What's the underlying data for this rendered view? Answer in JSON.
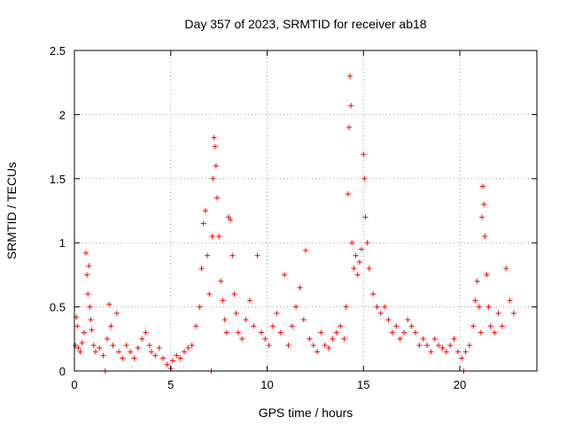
{
  "chart_data": {
    "type": "scatter",
    "title": "Day 357 of 2023, SRMTID for receiver ab18",
    "xlabel": "GPS time / hours",
    "ylabel": "SRMTID / TECUs",
    "xlim": [
      0,
      24
    ],
    "ylim": [
      0,
      2.5
    ],
    "xticks": [
      0,
      5,
      10,
      15,
      20
    ],
    "yticks": [
      0,
      0.5,
      1,
      1.5,
      2,
      2.5
    ],
    "xtick_labels": [
      "0",
      "5",
      "10",
      "15",
      "20"
    ],
    "ytick_labels": [
      "0",
      "0.5",
      "1",
      "1.5",
      "2",
      "2.5"
    ],
    "grid": true,
    "marker": "plus",
    "series": [
      {
        "name": "ab18",
        "color": "#ff0000",
        "points": [
          [
            0.05,
            0.2
          ],
          [
            0.1,
            0.42
          ],
          [
            0.15,
            0.35
          ],
          [
            0.2,
            0.18
          ],
          [
            0.3,
            0.15
          ],
          [
            0.4,
            0.22
          ],
          [
            0.5,
            0.3
          ],
          [
            0.6,
            0.92
          ],
          [
            0.65,
            0.75
          ],
          [
            0.7,
            0.6
          ],
          [
            0.75,
            0.82
          ],
          [
            0.8,
            0.5
          ],
          [
            0.85,
            0.4
          ],
          [
            0.9,
            0.32
          ],
          [
            1.0,
            0.2
          ],
          [
            1.1,
            0.15
          ],
          [
            1.3,
            0.18
          ],
          [
            1.5,
            0.12
          ],
          [
            1.6,
            0.0
          ],
          [
            1.7,
            0.25
          ],
          [
            1.8,
            0.52
          ],
          [
            1.9,
            0.35
          ],
          [
            2.0,
            0.2
          ],
          [
            2.2,
            0.45
          ],
          [
            2.3,
            0.15
          ],
          [
            2.5,
            0.1
          ],
          [
            2.7,
            0.2
          ],
          [
            2.9,
            0.15
          ],
          [
            3.1,
            0.1
          ],
          [
            3.3,
            0.18
          ],
          [
            3.5,
            0.25
          ],
          [
            3.7,
            0.3
          ],
          [
            3.9,
            0.2
          ],
          [
            4.0,
            0.15
          ],
          [
            4.2,
            0.12
          ],
          [
            4.4,
            0.18
          ],
          [
            4.6,
            0.1
          ],
          [
            4.8,
            0.05
          ],
          [
            5.0,
            0.02
          ],
          [
            5.1,
            0.08
          ],
          [
            5.3,
            0.12
          ],
          [
            5.5,
            0.1
          ],
          [
            5.7,
            0.15
          ],
          [
            5.9,
            0.18
          ],
          [
            6.1,
            0.2
          ],
          [
            6.3,
            0.35
          ],
          [
            6.5,
            0.5
          ],
          [
            6.6,
            0.8
          ],
          [
            6.7,
            1.15
          ],
          [
            6.8,
            1.25
          ],
          [
            6.9,
            0.9
          ],
          [
            7.0,
            0.6
          ],
          [
            7.1,
            0.0
          ],
          [
            7.15,
            1.05
          ],
          [
            7.2,
            1.5
          ],
          [
            7.25,
            1.82
          ],
          [
            7.3,
            1.75
          ],
          [
            7.35,
            1.6
          ],
          [
            7.4,
            1.35
          ],
          [
            7.5,
            1.05
          ],
          [
            7.6,
            0.7
          ],
          [
            7.7,
            0.55
          ],
          [
            7.8,
            0.4
          ],
          [
            7.9,
            0.3
          ],
          [
            8.0,
            1.2
          ],
          [
            8.1,
            1.18
          ],
          [
            8.2,
            0.9
          ],
          [
            8.3,
            0.6
          ],
          [
            8.4,
            0.45
          ],
          [
            8.5,
            0.3
          ],
          [
            8.7,
            0.25
          ],
          [
            8.9,
            0.4
          ],
          [
            9.1,
            0.55
          ],
          [
            9.3,
            0.35
          ],
          [
            9.5,
            0.9
          ],
          [
            9.7,
            0.3
          ],
          [
            9.9,
            0.25
          ],
          [
            10.1,
            0.2
          ],
          [
            10.3,
            0.35
          ],
          [
            10.5,
            0.45
          ],
          [
            10.7,
            0.3
          ],
          [
            10.9,
            0.75
          ],
          [
            11.1,
            0.2
          ],
          [
            11.3,
            0.35
          ],
          [
            11.5,
            0.5
          ],
          [
            11.7,
            0.65
          ],
          [
            11.9,
            0.4
          ],
          [
            12.0,
            0.94
          ],
          [
            12.2,
            0.25
          ],
          [
            12.4,
            0.2
          ],
          [
            12.6,
            0.15
          ],
          [
            12.8,
            0.3
          ],
          [
            13.0,
            0.2
          ],
          [
            13.2,
            0.18
          ],
          [
            13.4,
            0.25
          ],
          [
            13.6,
            0.3
          ],
          [
            13.8,
            0.35
          ],
          [
            14.0,
            0.25
          ],
          [
            14.1,
            0.5
          ],
          [
            14.2,
            1.38
          ],
          [
            14.25,
            1.9
          ],
          [
            14.3,
            2.3
          ],
          [
            14.35,
            2.07
          ],
          [
            14.4,
            1.0
          ],
          [
            14.5,
            0.8
          ],
          [
            14.6,
            0.9
          ],
          [
            14.7,
            0.75
          ],
          [
            14.8,
            0.85
          ],
          [
            14.9,
            0.95
          ],
          [
            15.0,
            1.69
          ],
          [
            15.05,
            1.5
          ],
          [
            15.1,
            1.2
          ],
          [
            15.2,
            1.0
          ],
          [
            15.3,
            0.8
          ],
          [
            15.5,
            0.6
          ],
          [
            15.7,
            0.5
          ],
          [
            15.9,
            0.45
          ],
          [
            16.1,
            0.5
          ],
          [
            16.3,
            0.4
          ],
          [
            16.5,
            0.3
          ],
          [
            16.7,
            0.35
          ],
          [
            16.9,
            0.25
          ],
          [
            17.1,
            0.3
          ],
          [
            17.3,
            0.4
          ],
          [
            17.5,
            0.35
          ],
          [
            17.7,
            0.3
          ],
          [
            17.9,
            0.2
          ],
          [
            18.1,
            0.25
          ],
          [
            18.3,
            0.2
          ],
          [
            18.5,
            0.15
          ],
          [
            18.7,
            0.25
          ],
          [
            18.9,
            0.2
          ],
          [
            19.1,
            0.18
          ],
          [
            19.3,
            0.15
          ],
          [
            19.5,
            0.2
          ],
          [
            19.7,
            0.25
          ],
          [
            19.9,
            0.15
          ],
          [
            20.1,
            0.1
          ],
          [
            20.2,
            0.0
          ],
          [
            20.3,
            0.15
          ],
          [
            20.5,
            0.2
          ],
          [
            20.7,
            0.35
          ],
          [
            20.8,
            0.55
          ],
          [
            20.9,
            0.7
          ],
          [
            21.0,
            0.5
          ],
          [
            21.1,
            0.3
          ],
          [
            21.15,
            1.2
          ],
          [
            21.2,
            1.44
          ],
          [
            21.25,
            1.3
          ],
          [
            21.3,
            1.05
          ],
          [
            21.4,
            0.75
          ],
          [
            21.5,
            0.5
          ],
          [
            21.6,
            0.35
          ],
          [
            21.8,
            0.3
          ],
          [
            22.0,
            0.45
          ],
          [
            22.2,
            0.35
          ],
          [
            22.4,
            0.8
          ],
          [
            22.6,
            0.55
          ],
          [
            22.8,
            0.45
          ]
        ]
      }
    ]
  }
}
